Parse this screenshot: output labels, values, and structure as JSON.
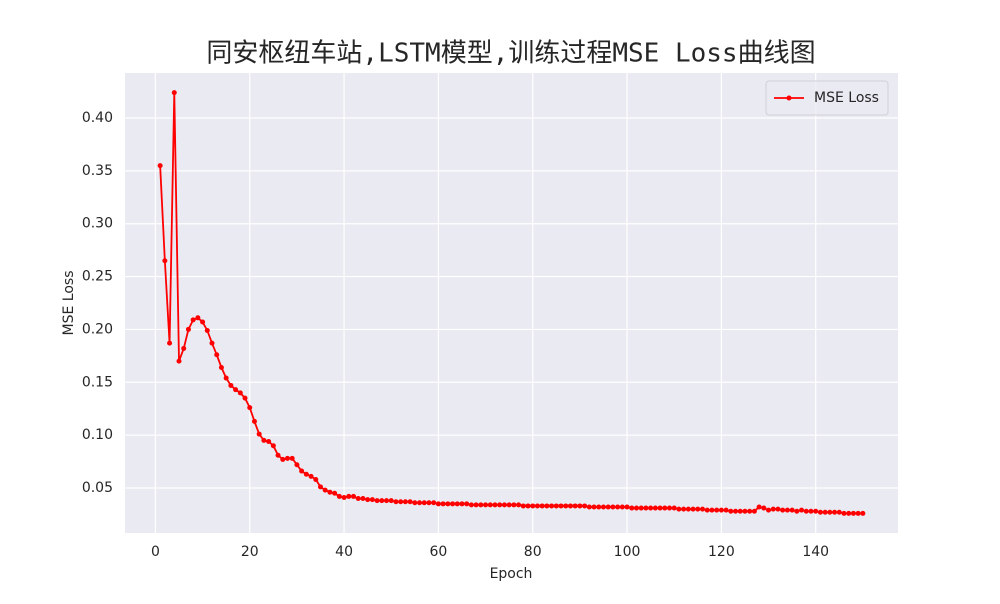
{
  "chart_data": {
    "type": "line",
    "title": "同安枢纽车站,LSTM模型,训练过程MSE Loss曲线图",
    "xlabel": "Epoch",
    "ylabel": "MSE Loss",
    "x": [
      1,
      2,
      3,
      4,
      5,
      6,
      7,
      8,
      9,
      10,
      11,
      12,
      13,
      14,
      15,
      16,
      17,
      18,
      19,
      20,
      21,
      22,
      23,
      24,
      25,
      26,
      27,
      28,
      29,
      30,
      31,
      32,
      33,
      34,
      35,
      36,
      37,
      38,
      39,
      40,
      41,
      42,
      43,
      44,
      45,
      46,
      47,
      48,
      49,
      50,
      51,
      52,
      53,
      54,
      55,
      56,
      57,
      58,
      59,
      60,
      61,
      62,
      63,
      64,
      65,
      66,
      67,
      68,
      69,
      70,
      71,
      72,
      73,
      74,
      75,
      76,
      77,
      78,
      79,
      80,
      81,
      82,
      83,
      84,
      85,
      86,
      87,
      88,
      89,
      90,
      91,
      92,
      93,
      94,
      95,
      96,
      97,
      98,
      99,
      100,
      101,
      102,
      103,
      104,
      105,
      106,
      107,
      108,
      109,
      110,
      111,
      112,
      113,
      114,
      115,
      116,
      117,
      118,
      119,
      120,
      121,
      122,
      123,
      124,
      125,
      126,
      127,
      128,
      129,
      130,
      131,
      132,
      133,
      134,
      135,
      136,
      137,
      138,
      139,
      140,
      141,
      142,
      143,
      144,
      145,
      146,
      147,
      148,
      149,
      150
    ],
    "series": [
      {
        "name": "MSE Loss",
        "color": "#ff0000",
        "values": [
          0.355,
          0.265,
          0.187,
          0.424,
          0.17,
          0.182,
          0.2,
          0.209,
          0.211,
          0.207,
          0.199,
          0.187,
          0.176,
          0.164,
          0.154,
          0.147,
          0.143,
          0.14,
          0.135,
          0.126,
          0.113,
          0.101,
          0.095,
          0.094,
          0.09,
          0.081,
          0.077,
          0.078,
          0.078,
          0.072,
          0.066,
          0.063,
          0.061,
          0.058,
          0.051,
          0.048,
          0.046,
          0.045,
          0.042,
          0.041,
          0.042,
          0.042,
          0.04,
          0.04,
          0.039,
          0.039,
          0.038,
          0.038,
          0.038,
          0.038,
          0.037,
          0.037,
          0.037,
          0.037,
          0.036,
          0.036,
          0.036,
          0.036,
          0.036,
          0.035,
          0.035,
          0.035,
          0.035,
          0.035,
          0.035,
          0.035,
          0.034,
          0.034,
          0.034,
          0.034,
          0.034,
          0.034,
          0.034,
          0.034,
          0.034,
          0.034,
          0.034,
          0.033,
          0.033,
          0.033,
          0.033,
          0.033,
          0.033,
          0.033,
          0.033,
          0.033,
          0.033,
          0.033,
          0.033,
          0.033,
          0.033,
          0.032,
          0.032,
          0.032,
          0.032,
          0.032,
          0.032,
          0.032,
          0.032,
          0.032,
          0.031,
          0.031,
          0.031,
          0.031,
          0.031,
          0.031,
          0.031,
          0.031,
          0.031,
          0.031,
          0.03,
          0.03,
          0.03,
          0.03,
          0.03,
          0.03,
          0.029,
          0.029,
          0.029,
          0.029,
          0.029,
          0.028,
          0.028,
          0.028,
          0.028,
          0.028,
          0.028,
          0.032,
          0.031,
          0.029,
          0.03,
          0.03,
          0.029,
          0.029,
          0.029,
          0.028,
          0.029,
          0.028,
          0.028,
          0.028,
          0.027,
          0.027,
          0.027,
          0.027,
          0.027,
          0.026,
          0.026,
          0.026,
          0.026,
          0.026
        ]
      }
    ],
    "xlim": [
      -6.45,
      157.45
    ],
    "xticks": [
      0,
      20,
      40,
      60,
      80,
      100,
      120,
      140
    ],
    "ylim": [
      0.0074,
      0.4426
    ],
    "yticks": [
      0.05,
      {
        "value": 0.1,
        "label": "0.10"
      },
      0.15,
      {
        "value": 0.2,
        "label": "0.20"
      },
      0.25,
      {
        "value": 0.3,
        "label": "0.30"
      },
      0.35,
      {
        "value": 0.4,
        "label": "0.40"
      }
    ],
    "grid": true,
    "legend": "upper right"
  }
}
